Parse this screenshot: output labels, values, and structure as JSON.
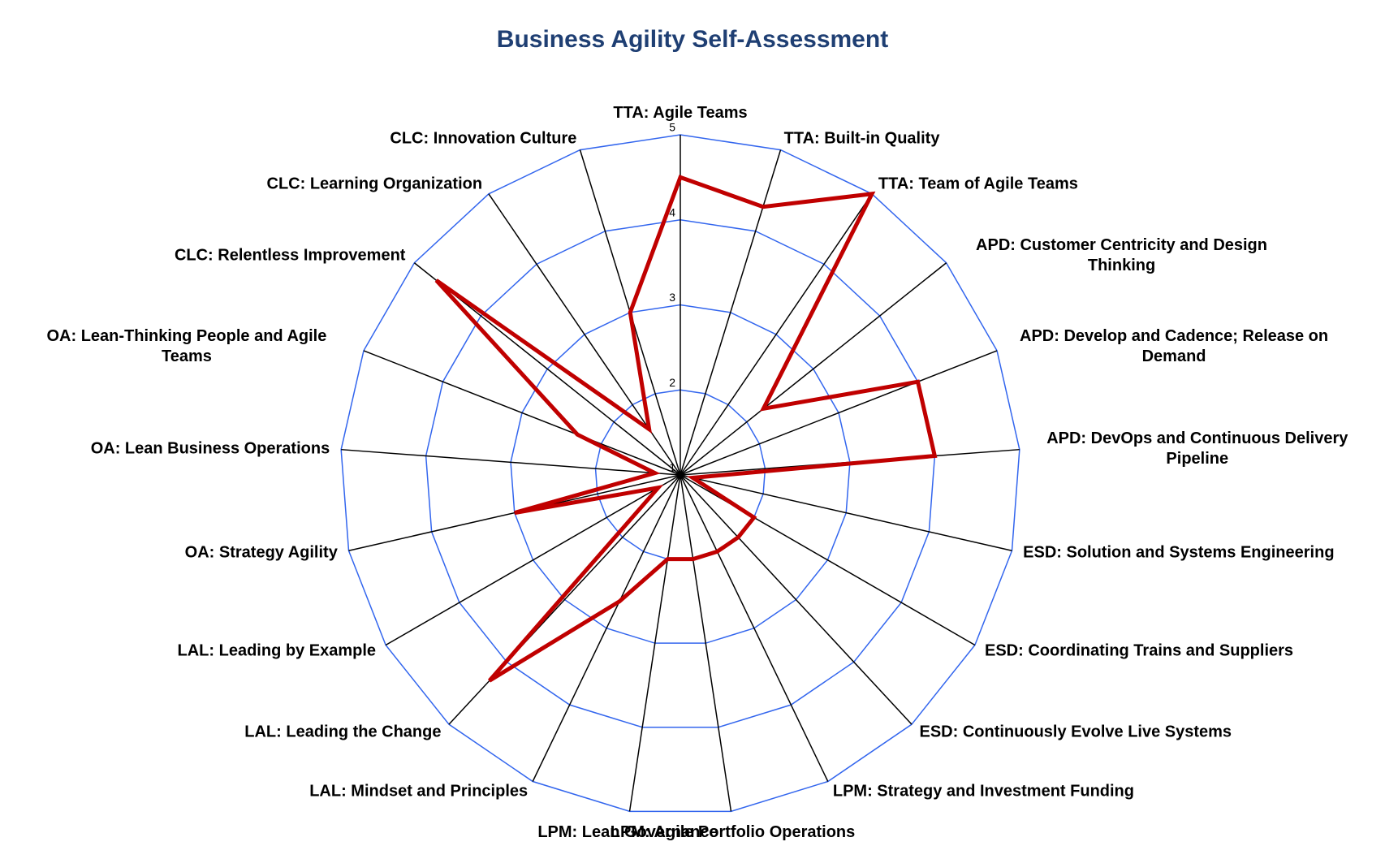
{
  "chart_data": {
    "type": "radar",
    "title": "Business Agility Self-Assessment",
    "categories": [
      "TTA: Agile Teams",
      "TTA: Built-in Quality",
      "TTA: Team of Agile Teams",
      "APD: Customer Centricity and Design Thinking",
      "APD: Develop and Cadence; Release on Demand",
      "APD: DevOps and Continuous Delivery Pipeline",
      "ESD: Solution and Systems Engineering",
      "ESD: Coordinating Trains and Suppliers",
      "ESD: Continuously Evolve Live Systems",
      "LPM: Strategy and Investment Funding",
      "LPM: Agile Portfolio Operations",
      "LPM: Lean Governance",
      "LAL: Mindset and Principles",
      "LAL: Leading the Change",
      "LAL: Leading by Example",
      "OA: Strategy Agility",
      "OA: Lean Business Operations",
      "OA: Lean-Thinking People and Agile Teams",
      "CLC: Relentless Improvement",
      "CLC: Learning Organization",
      "CLC: Innovation Culture"
    ],
    "values": [
      4.5,
      4.3,
      5,
      2.25,
      4,
      4,
      1.15,
      2,
      2,
      2,
      2,
      2,
      2.65,
      4.3,
      1.3,
      3,
      1.3,
      2.3,
      4.67,
      1.65,
      3
    ],
    "color": "#c00000",
    "grid_color": "#3366ee",
    "ylim": [
      1,
      5
    ],
    "yticks": [
      1,
      2,
      3,
      4,
      5
    ],
    "grid": true
  }
}
